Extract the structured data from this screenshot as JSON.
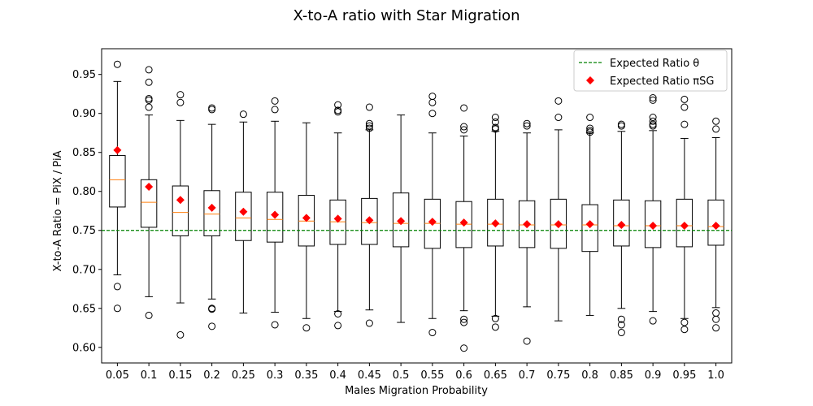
{
  "chart_data": {
    "type": "box",
    "title": "X-to-A ratio with Star Migration",
    "xlabel": "Males Migration Probability",
    "ylabel": "X-to-A Ratio = PiX / PiA",
    "ylim": [
      0.58,
      0.983
    ],
    "yticks": [
      "0.60",
      "0.65",
      "0.70",
      "0.75",
      "0.80",
      "0.85",
      "0.90",
      "0.95"
    ],
    "categories": [
      "0.05",
      "0.1",
      "0.15",
      "0.2",
      "0.25",
      "0.3",
      "0.35",
      "0.4",
      "0.45",
      "0.5",
      "0.55",
      "0.6",
      "0.65",
      "0.7",
      "0.75",
      "0.8",
      "0.85",
      "0.9",
      "0.95",
      "1.0"
    ],
    "boxes": [
      {
        "whislo": 0.693,
        "q1": 0.78,
        "med": 0.815,
        "q3": 0.846,
        "whishi": 0.941,
        "fliers": [
          0.963,
          0.678,
          0.65
        ]
      },
      {
        "whislo": 0.665,
        "q1": 0.754,
        "med": 0.786,
        "q3": 0.815,
        "whishi": 0.898,
        "fliers": [
          0.956,
          0.94,
          0.919,
          0.917,
          0.908,
          0.641
        ]
      },
      {
        "whislo": 0.657,
        "q1": 0.743,
        "med": 0.773,
        "q3": 0.807,
        "whishi": 0.891,
        "fliers": [
          0.924,
          0.914,
          0.616
        ]
      },
      {
        "whislo": 0.662,
        "q1": 0.743,
        "med": 0.771,
        "q3": 0.801,
        "whishi": 0.886,
        "fliers": [
          0.907,
          0.905,
          0.65,
          0.649,
          0.627
        ]
      },
      {
        "whislo": 0.644,
        "q1": 0.737,
        "med": 0.766,
        "q3": 0.799,
        "whishi": 0.889,
        "fliers": [
          0.899
        ]
      },
      {
        "whislo": 0.645,
        "q1": 0.735,
        "med": 0.764,
        "q3": 0.799,
        "whishi": 0.89,
        "fliers": [
          0.916,
          0.905,
          0.629
        ]
      },
      {
        "whislo": 0.637,
        "q1": 0.73,
        "med": 0.762,
        "q3": 0.795,
        "whishi": 0.888,
        "fliers": [
          0.625
        ]
      },
      {
        "whislo": 0.646,
        "q1": 0.732,
        "med": 0.761,
        "q3": 0.789,
        "whishi": 0.875,
        "fliers": [
          0.911,
          0.904,
          0.902,
          0.643,
          0.628
        ]
      },
      {
        "whislo": 0.648,
        "q1": 0.732,
        "med": 0.76,
        "q3": 0.791,
        "whishi": 0.879,
        "fliers": [
          0.908,
          0.887,
          0.884,
          0.881,
          0.631
        ]
      },
      {
        "whislo": 0.632,
        "q1": 0.729,
        "med": 0.759,
        "q3": 0.798,
        "whishi": 0.898,
        "fliers": []
      },
      {
        "whislo": 0.637,
        "q1": 0.727,
        "med": 0.759,
        "q3": 0.79,
        "whishi": 0.875,
        "fliers": [
          0.922,
          0.914,
          0.9,
          0.619
        ]
      },
      {
        "whislo": 0.647,
        "q1": 0.728,
        "med": 0.758,
        "q3": 0.787,
        "whishi": 0.871,
        "fliers": [
          0.907,
          0.883,
          0.879,
          0.636,
          0.632,
          0.599
        ]
      },
      {
        "whislo": 0.64,
        "q1": 0.73,
        "med": 0.758,
        "q3": 0.79,
        "whishi": 0.877,
        "fliers": [
          0.895,
          0.889,
          0.882,
          0.88,
          0.637,
          0.626
        ]
      },
      {
        "whislo": 0.652,
        "q1": 0.728,
        "med": 0.757,
        "q3": 0.788,
        "whishi": 0.875,
        "fliers": [
          0.887,
          0.884,
          0.608
        ]
      },
      {
        "whislo": 0.634,
        "q1": 0.727,
        "med": 0.757,
        "q3": 0.79,
        "whishi": 0.879,
        "fliers": [
          0.916,
          0.895
        ]
      },
      {
        "whislo": 0.641,
        "q1": 0.723,
        "med": 0.757,
        "q3": 0.783,
        "whishi": 0.875,
        "fliers": [
          0.895,
          0.881,
          0.878,
          0.876
        ]
      },
      {
        "whislo": 0.65,
        "q1": 0.73,
        "med": 0.756,
        "q3": 0.789,
        "whishi": 0.877,
        "fliers": [
          0.886,
          0.884,
          0.636,
          0.629,
          0.619
        ]
      },
      {
        "whislo": 0.646,
        "q1": 0.728,
        "med": 0.756,
        "q3": 0.788,
        "whishi": 0.878,
        "fliers": [
          0.92,
          0.917,
          0.895,
          0.89,
          0.886,
          0.884,
          0.634
        ]
      },
      {
        "whislo": 0.637,
        "q1": 0.729,
        "med": 0.756,
        "q3": 0.79,
        "whishi": 0.868,
        "fliers": [
          0.918,
          0.908,
          0.886,
          0.632,
          0.623
        ]
      },
      {
        "whislo": 0.651,
        "q1": 0.731,
        "med": 0.755,
        "q3": 0.789,
        "whishi": 0.869,
        "fliers": [
          0.89,
          0.88,
          0.644,
          0.636,
          0.625
        ]
      }
    ],
    "expected_pisg": [
      0.853,
      0.806,
      0.789,
      0.779,
      0.774,
      0.77,
      0.766,
      0.765,
      0.763,
      0.762,
      0.761,
      0.76,
      0.759,
      0.758,
      0.758,
      0.758,
      0.757,
      0.756,
      0.756,
      0.756
    ],
    "expected_theta": 0.75,
    "legend": {
      "position": "top-right",
      "entries": [
        {
          "label": "Expected Ratio θ",
          "color": "#008000",
          "marker": "dashed-line"
        },
        {
          "label": "Expected Ratio πSG",
          "color": "#ff0000",
          "marker": "diamond"
        }
      ]
    },
    "colors": {
      "box": "#000000",
      "median": "#ff7f0e",
      "theta_line": "#008000",
      "pisg_marker": "#ff0000"
    }
  }
}
